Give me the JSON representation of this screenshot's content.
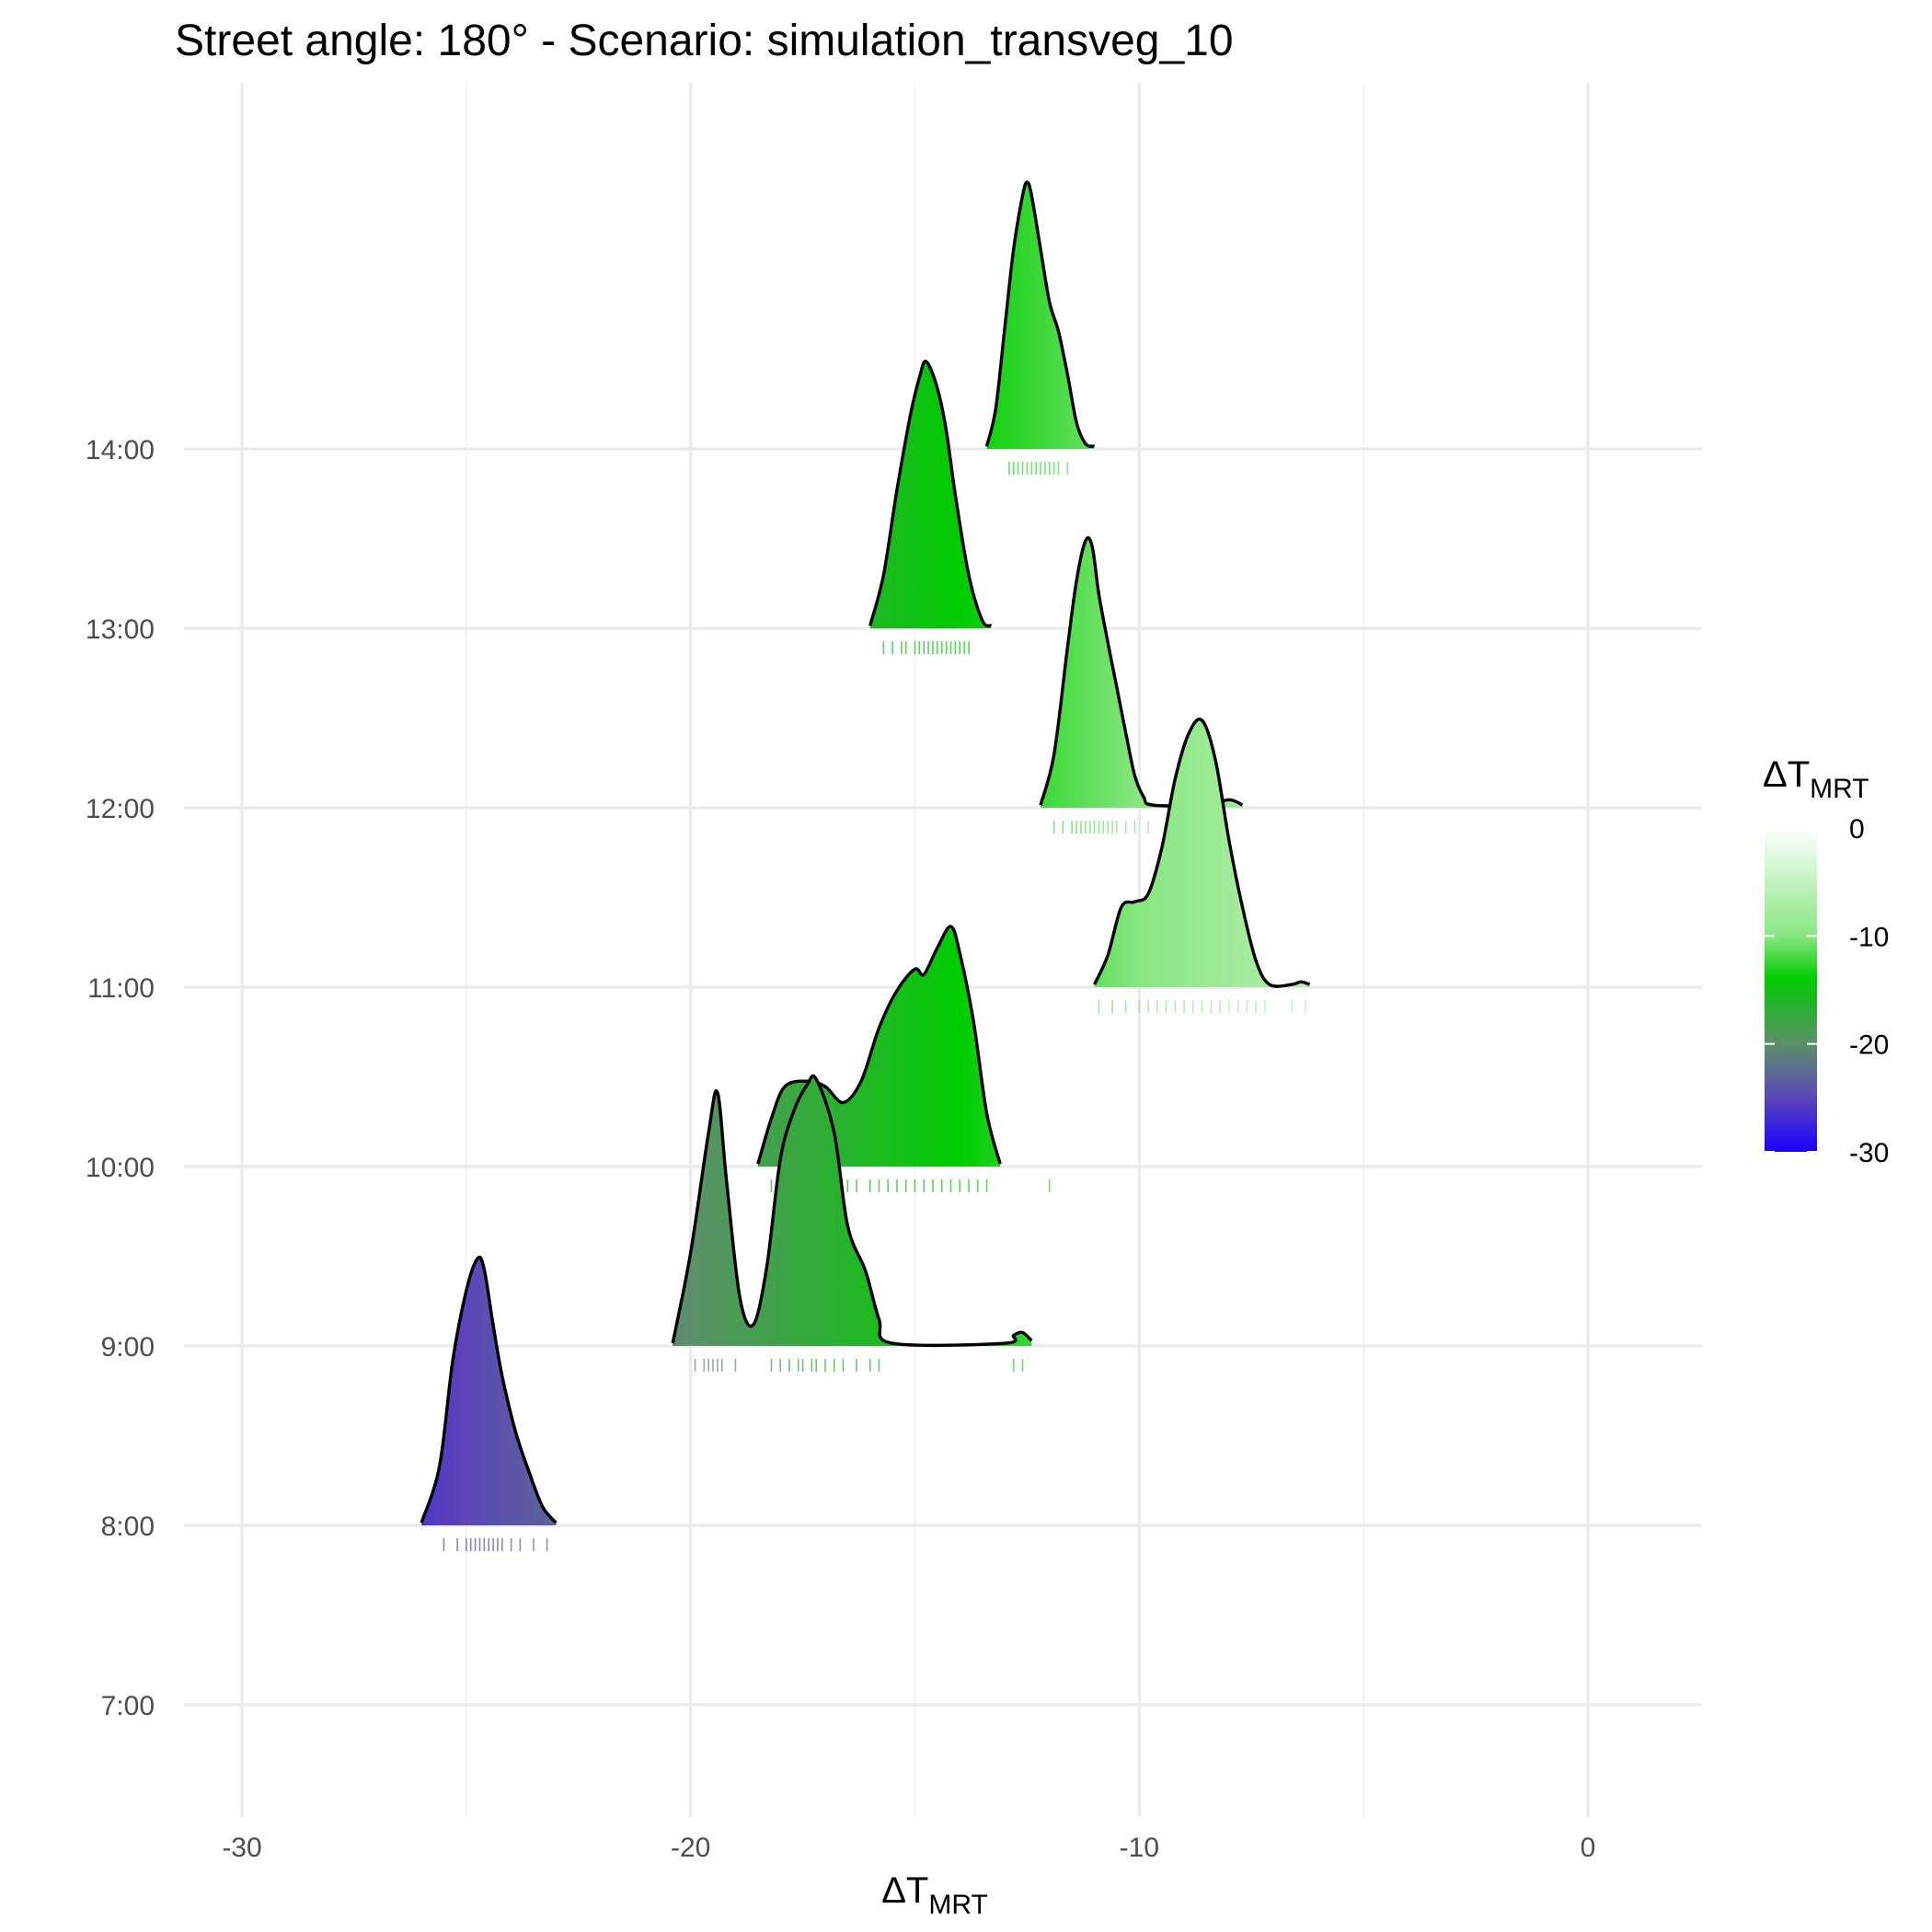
{
  "chart_data": {
    "type": "ridgeline",
    "title": "Street angle: 180° - Scenario: simulation_transveg_10",
    "xlabel": {
      "main": "ΔT",
      "sub": "MRT"
    },
    "xlim": [
      -31,
      2.5
    ],
    "x_ticks": [
      -30,
      -20,
      -10,
      0
    ],
    "x_tick_labels": [
      "-30",
      "-20",
      "-10",
      "0"
    ],
    "y_categories": [
      "7:00",
      "8:00",
      "9:00",
      "10:00",
      "11:00",
      "12:00",
      "13:00",
      "14:00"
    ],
    "grid": true,
    "legend": {
      "title": {
        "main": "ΔT",
        "sub": "MRT"
      },
      "placement": "right",
      "breaks": [
        0,
        -10,
        -20,
        -30
      ],
      "break_labels": [
        "0",
        "-10",
        "-20",
        "-30"
      ],
      "range": [
        -30,
        0
      ],
      "gradient": [
        {
          "value": 0,
          "color": "#ffffff"
        },
        {
          "value": -10,
          "color": "#88e680"
        },
        {
          "value": -14,
          "color": "#00cc00"
        },
        {
          "value": -20,
          "color": "#5c8f6a"
        },
        {
          "value": -25,
          "color": "#5c46b8"
        },
        {
          "value": -30,
          "color": "#1a00ff"
        }
      ]
    },
    "series": [
      {
        "category": "8:00",
        "x": [
          -26.0,
          -25.6,
          -25.3,
          -25.0,
          -24.75,
          -24.6,
          -24.4,
          -24.2,
          -23.9,
          -23.6,
          -23.3,
          -23.0
        ],
        "density": [
          0.01,
          0.22,
          0.62,
          0.88,
          1.0,
          0.96,
          0.75,
          0.56,
          0.35,
          0.2,
          0.07,
          0.01
        ],
        "rug": [
          -25.5,
          -25.2,
          -25.0,
          -24.9,
          -24.8,
          -24.7,
          -24.6,
          -24.5,
          -24.4,
          -24.3,
          -24.2,
          -24.0,
          -23.8,
          -23.5,
          -23.2
        ]
      },
      {
        "category": "9:00",
        "x": [
          -20.4,
          -20.0,
          -19.6,
          -19.4,
          -19.2,
          -18.9,
          -18.6,
          -18.3,
          -18.0,
          -17.7,
          -17.4,
          -17.2,
          -16.8,
          -16.5,
          -16.1,
          -15.8,
          -15.5,
          -13.0,
          -12.8,
          -12.6,
          -12.4
        ],
        "density": [
          0.01,
          0.35,
          0.8,
          0.95,
          0.62,
          0.18,
          0.08,
          0.3,
          0.7,
          0.88,
          0.98,
          1.0,
          0.8,
          0.45,
          0.28,
          0.1,
          0.01,
          0.01,
          0.04,
          0.05,
          0.02
        ],
        "rug": [
          -19.9,
          -19.7,
          -19.6,
          -19.5,
          -19.4,
          -19.3,
          -19.0,
          -18.2,
          -18.0,
          -17.8,
          -17.6,
          -17.5,
          -17.3,
          -17.2,
          -17.0,
          -16.8,
          -16.6,
          -16.3,
          -16.0,
          -15.8,
          -12.8,
          -12.6
        ]
      },
      {
        "category": "10:00",
        "x": [
          -18.5,
          -18.2,
          -17.9,
          -17.4,
          -17.0,
          -16.6,
          -16.2,
          -15.8,
          -15.4,
          -15.0,
          -14.8,
          -14.5,
          -14.2,
          -14.0,
          -13.7,
          -13.4,
          -13.1
        ],
        "density": [
          0.01,
          0.18,
          0.3,
          0.32,
          0.3,
          0.24,
          0.32,
          0.52,
          0.66,
          0.74,
          0.72,
          0.82,
          0.9,
          0.8,
          0.55,
          0.2,
          0.01
        ],
        "rug": [
          -18.2,
          -18.0,
          -17.8,
          -17.5,
          -17.2,
          -17.0,
          -16.8,
          -16.5,
          -16.3,
          -16.0,
          -15.8,
          -15.6,
          -15.4,
          -15.2,
          -15.0,
          -14.8,
          -14.6,
          -14.4,
          -14.2,
          -14.0,
          -13.8,
          -13.6,
          -13.4,
          -12.0
        ]
      },
      {
        "category": "11:00",
        "x": [
          -11.0,
          -10.7,
          -10.4,
          -10.1,
          -9.8,
          -9.5,
          -9.2,
          -8.9,
          -8.6,
          -8.3,
          -8.0,
          -7.7,
          -7.4,
          -7.1,
          -6.6,
          -6.4,
          -6.2
        ],
        "density": [
          0.01,
          0.12,
          0.3,
          0.32,
          0.35,
          0.52,
          0.78,
          0.95,
          1.0,
          0.85,
          0.55,
          0.3,
          0.1,
          0.01,
          0.01,
          0.02,
          0.01
        ],
        "rug": [
          -10.9,
          -10.6,
          -10.3,
          -10.0,
          -9.8,
          -9.6,
          -9.4,
          -9.2,
          -9.0,
          -8.8,
          -8.6,
          -8.4,
          -8.2,
          -8.0,
          -7.8,
          -7.6,
          -7.4,
          -7.2,
          -6.6,
          -6.3
        ]
      },
      {
        "category": "12:00",
        "x": [
          -12.2,
          -11.9,
          -11.6,
          -11.4,
          -11.2,
          -11.05,
          -10.9,
          -10.7,
          -10.5,
          -10.3,
          -10.1,
          -9.9,
          -9.7,
          -8.5,
          -8.0,
          -7.7
        ],
        "density": [
          0.01,
          0.2,
          0.6,
          0.85,
          1.0,
          0.98,
          0.8,
          0.62,
          0.45,
          0.28,
          0.12,
          0.04,
          0.01,
          0.01,
          0.03,
          0.01
        ],
        "rug": [
          -11.9,
          -11.7,
          -11.5,
          -11.4,
          -11.3,
          -11.2,
          -11.1,
          -11.0,
          -10.9,
          -10.8,
          -10.7,
          -10.6,
          -10.5,
          -10.3,
          -10.1,
          -9.8
        ]
      },
      {
        "category": "13:00",
        "x": [
          -16.0,
          -15.7,
          -15.4,
          -15.1,
          -14.9,
          -14.75,
          -14.5,
          -14.3,
          -14.1,
          -13.8,
          -13.5,
          -13.3
        ],
        "density": [
          0.01,
          0.2,
          0.52,
          0.8,
          0.94,
          1.0,
          0.9,
          0.74,
          0.5,
          0.2,
          0.03,
          0.01
        ],
        "rug": [
          -15.7,
          -15.5,
          -15.3,
          -15.2,
          -15.0,
          -14.9,
          -14.8,
          -14.7,
          -14.6,
          -14.5,
          -14.4,
          -14.3,
          -14.2,
          -14.1,
          -14.0,
          -13.9,
          -13.8
        ]
      },
      {
        "category": "14:00",
        "x": [
          -13.4,
          -13.2,
          -13.0,
          -12.8,
          -12.6,
          -12.5,
          -12.4,
          -12.2,
          -12.0,
          -11.8,
          -11.6,
          -11.4,
          -11.2,
          -11.0
        ],
        "density": [
          0.01,
          0.15,
          0.45,
          0.75,
          0.95,
          1.0,
          0.95,
          0.75,
          0.55,
          0.44,
          0.28,
          0.1,
          0.02,
          0.01
        ],
        "rug": [
          -12.9,
          -12.8,
          -12.7,
          -12.6,
          -12.5,
          -12.4,
          -12.3,
          -12.2,
          -12.1,
          -12.0,
          -11.9,
          -11.8,
          -11.6
        ]
      }
    ]
  }
}
